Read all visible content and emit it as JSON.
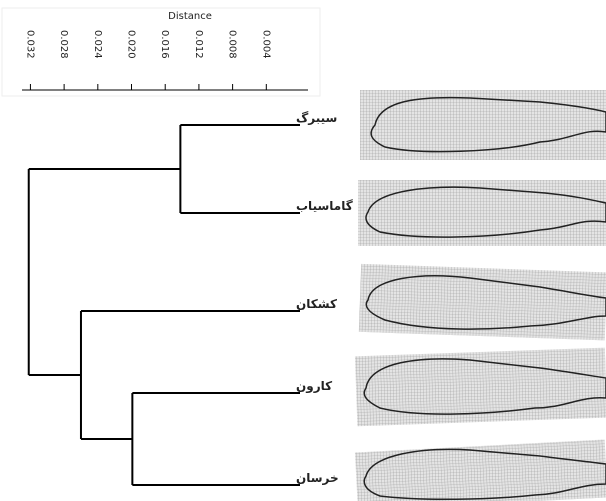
{
  "chart_data": {
    "type": "dendrogram",
    "x_label": "Distance",
    "xlim": [
      0.033,
      0
    ],
    "xticks": [
      0.032,
      0.028,
      0.024,
      {
        "value": 0.02,
        "label": "0.020"
      },
      0.016,
      0.012,
      0.008,
      0.004
    ],
    "categories": [
      "سیبرگ",
      "گاماسیاب",
      "کشکان",
      "کارون",
      "خرسان"
    ],
    "clusters": [
      {
        "members": [
          0,
          1
        ],
        "height": 0.0142
      },
      {
        "members": [
          3,
          4
        ],
        "height": 0.0199
      },
      {
        "members": [
          2,
          3,
          4
        ],
        "height": 0.026
      },
      {
        "members": [
          0,
          1,
          2,
          3,
          4
        ],
        "height": 0.0322
      }
    ],
    "color": "#000000"
  }
}
